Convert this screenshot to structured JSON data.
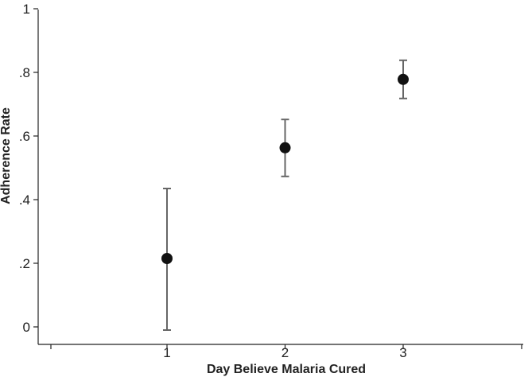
{
  "chart_data": {
    "type": "scatter",
    "title": "",
    "xlabel": "Day Believe Malaria Cured",
    "ylabel": "Adherence Rate",
    "x_ticks": [
      {
        "value": 1,
        "label": "1"
      },
      {
        "value": 2,
        "label": "2"
      },
      {
        "value": 3,
        "label": "3"
      }
    ],
    "y_ticks": [
      {
        "value": 0,
        "label": "0"
      },
      {
        "value": 0.2,
        "label": ".2"
      },
      {
        "value": 0.4,
        "label": ".4"
      },
      {
        "value": 0.6,
        "label": ".6"
      },
      {
        "value": 0.8,
        "label": ".8"
      },
      {
        "value": 1,
        "label": "1"
      }
    ],
    "xlim": [
      0,
      4
    ],
    "ylim": [
      0,
      1
    ],
    "grid": false,
    "series": [
      {
        "points": [
          {
            "x": 1,
            "y": 0.215,
            "lower": -0.01,
            "upper": 0.435
          },
          {
            "x": 2,
            "y": 0.563,
            "lower": 0.473,
            "upper": 0.652
          },
          {
            "x": 3,
            "y": 0.778,
            "lower": 0.718,
            "upper": 0.838
          }
        ]
      }
    ],
    "colors": {
      "marker": "#111111",
      "error_bar": "#666666",
      "axis": "#222222"
    }
  }
}
